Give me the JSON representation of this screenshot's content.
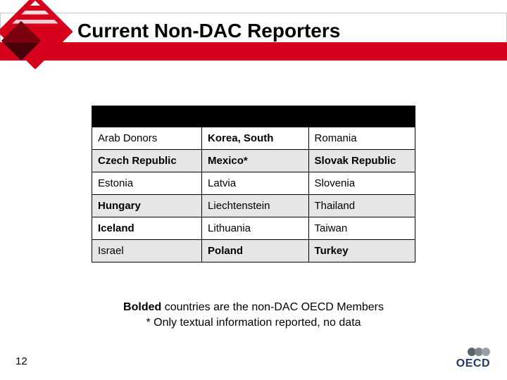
{
  "title": "Current Non-DAC Reporters",
  "page_number": "12",
  "brand": {
    "accent_red": "#d6001c",
    "oecd_label": "OECD",
    "oecd_text_color": "#1f3a66"
  },
  "table": {
    "columns": 3,
    "col_widths_pct": [
      34,
      33,
      33
    ],
    "header_bg": "#000000",
    "row_bg_even": "#ffffff",
    "row_bg_odd": "#e6e6e6",
    "border_color": "#000000",
    "cell_fontsize": 15,
    "rows": [
      [
        {
          "text": "Arab Donors",
          "bold": false
        },
        {
          "text": "Korea, South",
          "bold": true
        },
        {
          "text": "Romania",
          "bold": false
        }
      ],
      [
        {
          "text": "Czech Republic",
          "bold": true
        },
        {
          "text": "Mexico*",
          "bold": true
        },
        {
          "text": "Slovak Republic",
          "bold": true
        }
      ],
      [
        {
          "text": "Estonia",
          "bold": false
        },
        {
          "text": "Latvia",
          "bold": false
        },
        {
          "text": "Slovenia",
          "bold": false
        }
      ],
      [
        {
          "text": "Hungary",
          "bold": true
        },
        {
          "text": "Liechtenstein",
          "bold": false
        },
        {
          "text": "Thailand",
          "bold": false
        }
      ],
      [
        {
          "text": "Iceland",
          "bold": true
        },
        {
          "text": "Lithuania",
          "bold": false
        },
        {
          "text": "Taiwan",
          "bold": false
        }
      ],
      [
        {
          "text": "Israel",
          "bold": false
        },
        {
          "text": "Poland",
          "bold": true
        },
        {
          "text": "Turkey",
          "bold": true
        }
      ]
    ]
  },
  "footnote_lines": {
    "l1_prefix_bold": "Bolded",
    "l1_rest": " countries are the non-DAC OECD Members",
    "l2": "* Only textual information reported, no data"
  }
}
